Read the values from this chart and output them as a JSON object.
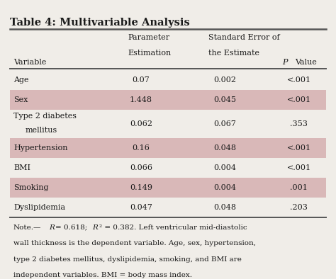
{
  "title": "Table 4: Multivariable Analysis",
  "col_headers": [
    "Variable",
    "Parameter\nEstimation",
    "Standard Error of\nthe Estimate",
    "P Value"
  ],
  "rows": [
    {
      "variable": "Age",
      "param": "0.07",
      "se": "0.002",
      "pval": "<.001",
      "shaded": false
    },
    {
      "variable": "Sex",
      "param": "1.448",
      "se": "0.045",
      "pval": "<.001",
      "shaded": true
    },
    {
      "variable": "Type 2 diabetes\nmellitus",
      "param": "0.062",
      "se": "0.067",
      "pval": ".353",
      "shaded": false
    },
    {
      "variable": "Hypertension",
      "param": "0.16",
      "se": "0.048",
      "pval": "<.001",
      "shaded": true
    },
    {
      "variable": "BMI",
      "param": "0.066",
      "se": "0.004",
      "pval": "<.001",
      "shaded": false
    },
    {
      "variable": "Smoking",
      "param": "0.149",
      "se": "0.004",
      "pval": ".001",
      "shaded": true
    },
    {
      "variable": "Dyslipidemia",
      "param": "0.047",
      "se": "0.048",
      "pval": ".203",
      "shaded": false
    }
  ],
  "note": "Note.—R = 0.618; R² = 0.382. Left ventricular mid-diastolic\nwall thickness is the dependent variable. Age, sex, hypertension,\ntype 2 diabetes mellitus, dyslipidemia, smoking, and BMI are\nindependent variables. BMI = body mass index.",
  "shaded_color": "#d9b8b8",
  "bg_color": "#f0ede8",
  "text_color": "#1a1a1a",
  "header_line_color": "#555555",
  "bottom_line_color": "#555555"
}
